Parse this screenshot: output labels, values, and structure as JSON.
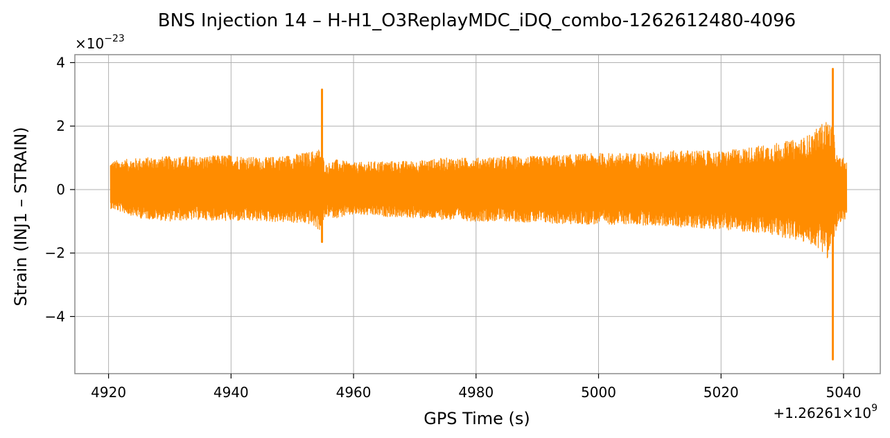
{
  "chart_data": {
    "type": "line",
    "title": "BNS Injection 14 – H-H1_O3ReplayMDC_iDQ_combo-1262612480-4096",
    "xlabel": "GPS Time (s)",
    "ylabel": "Strain (INJ1 – STRAIN)",
    "x_offset_label": "+1.26261×10",
    "x_offset_exponent": "9",
    "y_multiplier_label": "×10",
    "y_multiplier_exponent": "−23",
    "x_ticks": [
      4920,
      4940,
      4960,
      4980,
      5000,
      5020,
      5040
    ],
    "x_tick_labels": [
      "4920",
      "4940",
      "4960",
      "4980",
      "5000",
      "5020",
      "5040"
    ],
    "y_ticks": [
      4,
      2,
      0,
      -2,
      -4
    ],
    "y_tick_labels": [
      "4",
      "2",
      "0",
      "−2",
      "−4"
    ],
    "xlim": [
      4914.5,
      5046
    ],
    "ylim": [
      -5.8,
      4.25
    ],
    "grid": true,
    "x_range": [
      4920.3,
      5040.5
    ],
    "series": [
      {
        "color": "#ff8c00",
        "envelope_x": [
          4920.3,
          4925,
          4930,
          4935,
          4940,
          4945,
          4950,
          4953,
          4954.5,
          4955.5,
          4957,
          4960,
          4965,
          4970,
          4975,
          4980,
          4985,
          4990,
          4995,
          5000,
          5005,
          5010,
          5015,
          5020,
          5025,
          5030,
          5033,
          5035,
          5036.5,
          5037.5,
          5038.3,
          5039,
          5040,
          5040.5
        ],
        "envelope_max": [
          0.9,
          1.0,
          1.05,
          1.05,
          1.1,
          1.0,
          1.1,
          1.2,
          1.3,
          0.8,
          0.95,
          0.85,
          0.9,
          0.9,
          1.0,
          1.0,
          1.05,
          1.05,
          1.1,
          1.15,
          1.15,
          1.2,
          1.25,
          1.2,
          1.35,
          1.5,
          1.6,
          1.8,
          2.1,
          2.2,
          1.9,
          1.0,
          1.0,
          0.85
        ],
        "envelope_min": [
          -0.6,
          -0.9,
          -1.0,
          -0.95,
          -1.0,
          -1.0,
          -1.05,
          -1.1,
          -1.3,
          -0.85,
          -0.9,
          -0.8,
          -0.85,
          -0.9,
          -0.95,
          -1.0,
          -1.0,
          -1.05,
          -1.1,
          -1.1,
          -1.1,
          -1.15,
          -1.2,
          -1.25,
          -1.35,
          -1.5,
          -1.65,
          -1.75,
          -1.95,
          -2.2,
          -1.6,
          -1.2,
          -1.1,
          -0.7
        ],
        "spikes": [
          {
            "x": 4954.85,
            "max": 3.15,
            "min": -1.65
          },
          {
            "x": 5038.25,
            "max": 3.8,
            "min": -5.35
          }
        ]
      }
    ]
  }
}
